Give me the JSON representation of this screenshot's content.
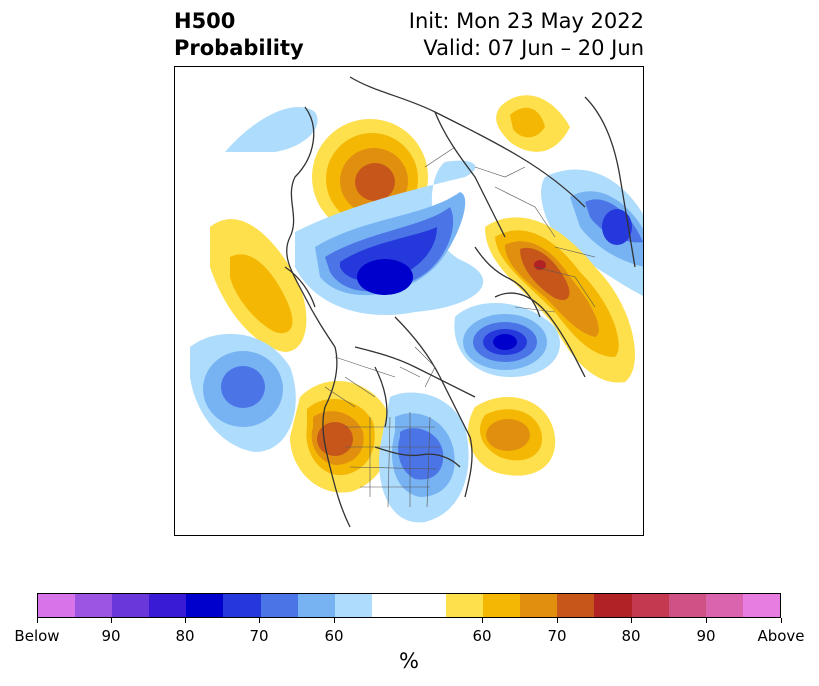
{
  "title": {
    "left_line1": "H500",
    "left_line2": "Probability",
    "right_line1": "Init: Mon 23 May 2022",
    "right_line2": "Valid: 07 Jun – 20 Jun"
  },
  "colorbar": {
    "colors": [
      "#d874ea",
      "#9b55e1",
      "#6a37db",
      "#3a1bd5",
      "#0000cc",
      "#2438dc",
      "#4b74e6",
      "#77b3f3",
      "#aedcfc",
      "#ffffff",
      "#ffffff",
      "#fedf4c",
      "#f4b804",
      "#e18f0f",
      "#c7561a",
      "#b02224",
      "#c4394f",
      "#ce5283",
      "#da64ad",
      "#e77ce1"
    ],
    "tick_labels": [
      "Below",
      "90",
      "80",
      "70",
      "60",
      "60",
      "70",
      "80",
      "90",
      "Above"
    ],
    "unit": "%"
  },
  "map": {
    "projection": "north-polar-stereographic",
    "field": "500 hPa height tercile probability",
    "anomaly_centers": [
      {
        "name": "western-canada-above",
        "sign": "above"
      },
      {
        "name": "arctic-below",
        "sign": "below"
      },
      {
        "name": "western-russia-above",
        "sign": "above"
      },
      {
        "name": "northeast-pacific-above",
        "sign": "above"
      },
      {
        "name": "north-pacific-below",
        "sign": "below"
      },
      {
        "name": "great-basin-above",
        "sign": "above"
      },
      {
        "name": "eastern-us-below",
        "sign": "below"
      },
      {
        "name": "north-atlantic-above",
        "sign": "above"
      },
      {
        "name": "greenland-sea-below",
        "sign": "below"
      },
      {
        "name": "siberia-below",
        "sign": "below"
      },
      {
        "name": "east-siberia-above",
        "sign": "above"
      }
    ]
  }
}
